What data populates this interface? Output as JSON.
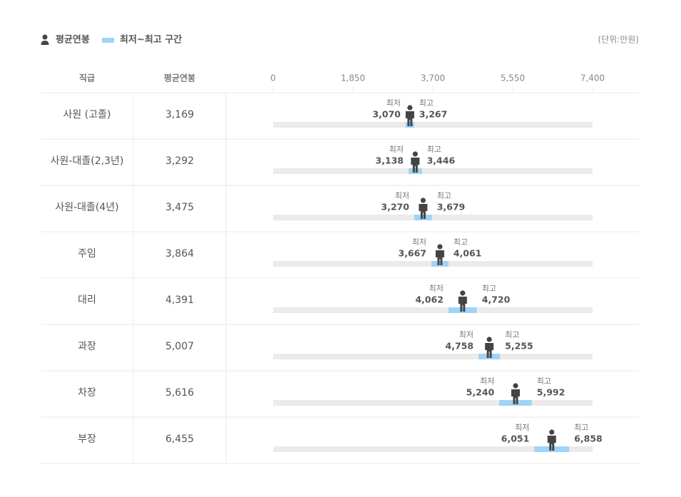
{
  "chart_data": {
    "type": "range",
    "unit": "(단위:만원)",
    "headers": [
      "직급",
      "평균연봉"
    ],
    "categories": [
      "사원 (고졸)",
      "사원-대졸(2,3년)",
      "사원-대졸(4년)",
      "주임",
      "대리",
      "과장",
      "차장",
      "부장"
    ],
    "average": {
      "name": "평균연봉",
      "color": "#444444",
      "values": [
        3169,
        3292,
        3475,
        3864,
        4391,
        5007,
        5616,
        6455
      ],
      "value_labels": [
        "3,169",
        "3,292",
        "3,475",
        "3,864",
        "4,391",
        "5,007",
        "5,616",
        "6,455"
      ]
    },
    "range": {
      "name": "최저~최고 구간",
      "color": "#9fd3f7",
      "min": [
        3070,
        3138,
        3270,
        3667,
        4062,
        4758,
        5240,
        6051
      ],
      "min_labels": [
        "3,070",
        "3,138",
        "3,270",
        "3,667",
        "4,062",
        "4,758",
        "5,240",
        "6,051"
      ],
      "max": [
        3267,
        3446,
        3679,
        4061,
        4720,
        5255,
        5992,
        6858
      ],
      "max_labels": [
        "3,267",
        "3,446",
        "3,679",
        "4,061",
        "4,720",
        "5,255",
        "5,992",
        "6,858"
      ]
    },
    "min_label": "최저",
    "max_label": "최고",
    "xlim": [
      0,
      7400
    ],
    "xticks": [
      0,
      {
        "value": 1850,
        "label": "1,850"
      },
      {
        "value": 3700,
        "label": "3,700"
      },
      {
        "value": 5550,
        "label": "5,550"
      },
      {
        "value": 7400,
        "label": "7,400"
      }
    ]
  }
}
